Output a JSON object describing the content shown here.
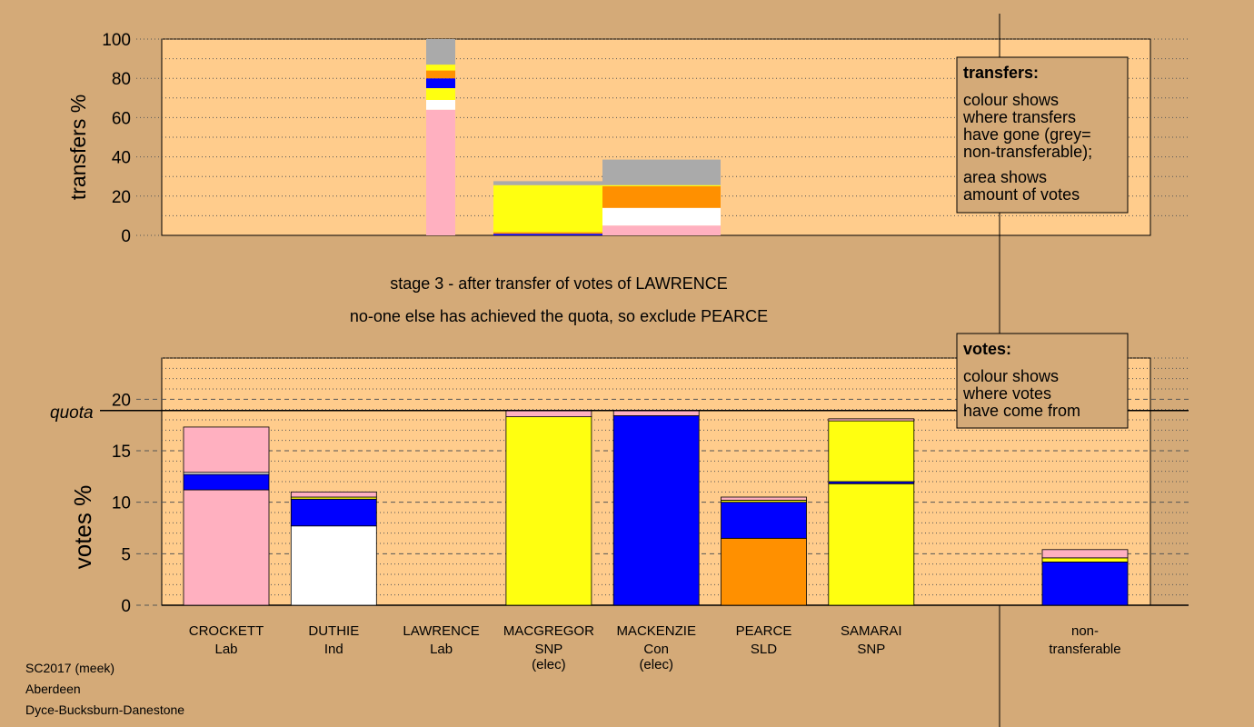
{
  "colors": {
    "page_bg": "#d4aa78",
    "plot_bg": "#ffcc8c",
    "box_bg": "#d4aa78",
    "pink": "#ffb0c0",
    "white": "#ffffff",
    "yellow": "#ffff10",
    "blue": "#0000ff",
    "orange": "#ff9000",
    "grey": "#aaaaaa"
  },
  "headings": {
    "stage": "stage 3 - after transfer of votes of LAWRENCE",
    "exclusion": "no-one else has achieved the quota, so exclude PEARCE"
  },
  "legend_transfers": {
    "title": "transfers:",
    "lines1": [
      "colour shows",
      "where transfers",
      "have gone (grey=",
      "non-transferable);"
    ],
    "lines2": [
      "area shows",
      "amount of votes"
    ]
  },
  "legend_votes": {
    "title": "votes:",
    "lines": [
      "colour shows",
      "where votes",
      "have come from"
    ]
  },
  "footer": [
    "SC2017 (meek)",
    "Aberdeen",
    "Dyce-Bucksburn-Danestone"
  ],
  "chart_data": [
    {
      "type": "bar",
      "stacked": true,
      "ylabel": "transfers %",
      "ylim": [
        0,
        100
      ],
      "yticks": [
        0,
        20,
        40,
        60,
        80,
        100
      ],
      "grid": "dotted",
      "bars": [
        {
          "from": "LAWRENCE",
          "segments": [
            {
              "color": "pink",
              "value": 64
            },
            {
              "color": "white",
              "value": 5
            },
            {
              "color": "yellow",
              "value": 6
            },
            {
              "color": "blue",
              "value": 5
            },
            {
              "color": "orange",
              "value": 4
            },
            {
              "color": "yellow",
              "value": 3
            },
            {
              "color": "grey",
              "value": 13
            }
          ]
        },
        {
          "from": "MACGREGOR",
          "segments": [
            {
              "color": "blue",
              "value": 0.8
            },
            {
              "color": "orange",
              "value": 0.8
            },
            {
              "color": "yellow",
              "value": 24
            },
            {
              "color": "grey",
              "value": 2
            }
          ]
        },
        {
          "from": "MACKENZIE",
          "segments": [
            {
              "color": "pink",
              "value": 5
            },
            {
              "color": "white",
              "value": 9
            },
            {
              "color": "orange",
              "value": 11
            },
            {
              "color": "yellow",
              "value": 0.6
            },
            {
              "color": "grey",
              "value": 13
            }
          ]
        }
      ]
    },
    {
      "type": "bar",
      "stacked": true,
      "ylabel": "votes %",
      "ylim": [
        0,
        24
      ],
      "yticks": [
        0,
        5,
        10,
        15,
        20
      ],
      "quota": 18.9,
      "quota_label": "quota",
      "grid": "dotted",
      "candidates": [
        {
          "name": "CROCKETT",
          "party": "Lab",
          "note": "",
          "segments": [
            {
              "color": "pink",
              "value": 11.2
            },
            {
              "color": "blue",
              "value": 1.5
            },
            {
              "color": "white",
              "value": 0.2
            },
            {
              "color": "pink",
              "value": 4.4
            }
          ]
        },
        {
          "name": "DUTHIE",
          "party": "Ind",
          "note": "",
          "segments": [
            {
              "color": "white",
              "value": 7.7
            },
            {
              "color": "blue",
              "value": 2.6
            },
            {
              "color": "yellow",
              "value": 0.2
            },
            {
              "color": "pink",
              "value": 0.5
            }
          ]
        },
        {
          "name": "LAWRENCE",
          "party": "Lab",
          "note": "",
          "segments": []
        },
        {
          "name": "MACGREGOR",
          "party": "SNP",
          "note": "(elec)",
          "segments": [
            {
              "color": "yellow",
              "value": 18.3
            },
            {
              "color": "pink",
              "value": 0.6
            }
          ]
        },
        {
          "name": "MACKENZIE",
          "party": "Con",
          "note": "(elec)",
          "segments": [
            {
              "color": "blue",
              "value": 18.4
            },
            {
              "color": "pink",
              "value": 0.5
            }
          ]
        },
        {
          "name": "PEARCE",
          "party": "SLD",
          "note": "",
          "segments": [
            {
              "color": "orange",
              "value": 6.5
            },
            {
              "color": "blue",
              "value": 3.5
            },
            {
              "color": "yellow",
              "value": 0.2
            },
            {
              "color": "pink",
              "value": 0.3
            }
          ]
        },
        {
          "name": "SAMARAI",
          "party": "SNP",
          "note": "",
          "segments": [
            {
              "color": "yellow",
              "value": 11.8
            },
            {
              "color": "blue",
              "value": 0.2
            },
            {
              "color": "yellow",
              "value": 5.9
            },
            {
              "color": "pink",
              "value": 0.2
            }
          ]
        }
      ],
      "nontransferable": {
        "label_line1": "non-",
        "label_line2": "transferable",
        "segments": [
          {
            "color": "blue",
            "value": 4.2
          },
          {
            "color": "yellow",
            "value": 0.4
          },
          {
            "color": "pink",
            "value": 0.8
          }
        ]
      }
    }
  ]
}
